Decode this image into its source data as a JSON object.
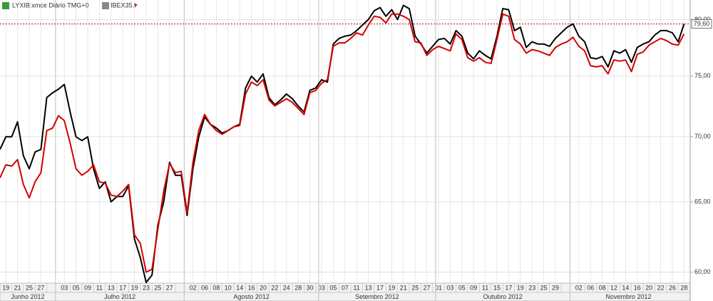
{
  "chart_data": {
    "type": "line",
    "log_scale": true,
    "grid": true,
    "categories": [
      null,
      "19",
      null,
      "21",
      null,
      "25",
      null,
      "27",
      null,
      null,
      null,
      "03",
      null,
      "05",
      null,
      "09",
      null,
      "11",
      null,
      "13",
      null,
      "17",
      null,
      "19",
      null,
      "23",
      null,
      "25",
      null,
      "27",
      null,
      null,
      null,
      "02",
      null,
      "06",
      null,
      "08",
      null,
      "10",
      null,
      "14",
      null,
      "16",
      null,
      "20",
      null,
      "22",
      null,
      "24",
      null,
      "28",
      null,
      "30",
      null,
      "03",
      null,
      "05",
      null,
      "07",
      null,
      "11",
      null,
      "13",
      null,
      "17",
      null,
      "19",
      null,
      "21",
      null,
      "25",
      null,
      "27",
      null,
      "01",
      null,
      "03",
      null,
      "05",
      null,
      "09",
      null,
      "11",
      null,
      "15",
      null,
      "17",
      null,
      "19",
      null,
      "23",
      null,
      "25",
      null,
      "29",
      null,
      null,
      null,
      "02",
      null,
      "06",
      null,
      "08",
      null,
      "12",
      null,
      "14",
      null,
      "16",
      null,
      "20",
      null,
      "22",
      null,
      "26",
      null,
      "28"
    ],
    "months": [
      "Junho 2012",
      "Julho 2012",
      "Agosto 2012",
      "Setembro 2012",
      "Outubro 2012",
      "Novembro 2012"
    ],
    "series": [
      {
        "name": "LYXIB:xmce Diário TMG+0",
        "color": "#000000",
        "values": [
          69.0,
          70.0,
          70.0,
          71.2,
          68.5,
          67.5,
          68.8,
          69.0,
          73.2,
          73.6,
          73.9,
          74.3,
          72.0,
          70.0,
          69.7,
          70.0,
          67.5,
          66.0,
          66.5,
          65.0,
          65.4,
          65.4,
          66.2,
          62.3,
          61.0,
          59.3,
          59.8,
          63.3,
          65.0,
          68.0,
          67.0,
          67.0,
          64.0,
          67.5,
          70.0,
          71.6,
          71.0,
          70.7,
          70.3,
          70.5,
          70.8,
          71.0,
          74.0,
          75.0,
          74.5,
          75.2,
          73.2,
          72.6,
          73.0,
          73.5,
          73.1,
          72.5,
          72.0,
          73.8,
          74.0,
          74.7,
          74.5,
          77.8,
          78.3,
          78.5,
          78.6,
          79.0,
          79.5,
          80.0,
          80.8,
          81.1,
          80.3,
          80.9,
          80.0,
          81.3,
          81.0,
          78.5,
          77.8,
          77.0,
          77.6,
          78.2,
          78.3,
          77.8,
          79.0,
          78.5,
          77.0,
          76.5,
          77.2,
          76.8,
          76.5,
          78.5,
          81.0,
          80.9,
          79.0,
          79.3,
          77.5,
          78.0,
          77.8,
          77.8,
          77.6,
          78.3,
          78.8,
          79.3,
          79.6,
          78.5,
          78.0,
          76.6,
          76.5,
          76.7,
          75.8,
          77.2,
          77.0,
          77.3,
          76.2,
          77.5,
          77.8,
          78.0,
          78.6,
          79.0,
          79.0,
          78.8,
          78.0,
          79.6
        ]
      },
      {
        "name": "IBEX35.I",
        "color": "#d40000",
        "values": [
          66.8,
          67.8,
          67.7,
          68.2,
          66.3,
          65.3,
          66.5,
          67.2,
          70.5,
          70.7,
          71.7,
          71.3,
          69.5,
          67.5,
          67.0,
          67.3,
          67.8,
          66.5,
          66.4,
          65.5,
          65.4,
          65.8,
          66.3,
          62.6,
          62.0,
          60.0,
          60.2,
          63.0,
          65.8,
          67.9,
          67.2,
          67.3,
          64.2,
          68.0,
          70.5,
          71.8,
          71.0,
          70.5,
          70.2,
          70.5,
          70.8,
          70.9,
          73.5,
          74.5,
          74.2,
          74.7,
          73.0,
          72.5,
          72.8,
          73.1,
          72.8,
          72.3,
          71.8,
          73.6,
          73.8,
          74.4,
          74.7,
          77.6,
          77.9,
          77.9,
          78.3,
          78.8,
          78.6,
          79.5,
          80.3,
          80.2,
          79.7,
          80.5,
          80.5,
          80.3,
          80.0,
          78.0,
          77.9,
          76.8,
          77.3,
          77.6,
          77.4,
          77.2,
          78.7,
          78.2,
          76.6,
          76.3,
          76.6,
          76.2,
          76.1,
          78.2,
          80.5,
          80.3,
          78.2,
          77.8,
          77.0,
          77.3,
          77.2,
          77.0,
          76.8,
          77.5,
          77.8,
          78.0,
          78.4,
          77.6,
          77.2,
          75.9,
          75.8,
          75.9,
          75.2,
          76.4,
          76.3,
          76.4,
          75.4,
          76.9,
          77.1,
          77.7,
          78.0,
          78.3,
          78.1,
          77.8,
          77.7,
          78.7
        ]
      }
    ],
    "ylim": [
      59.3,
      81.8
    ],
    "yticks": [
      {
        "value": 60,
        "label": "60,00"
      },
      {
        "value": 65,
        "label": "65,00"
      },
      {
        "value": 70,
        "label": "70,00"
      },
      {
        "value": 75,
        "label": "75,00"
      },
      {
        "value": 80,
        "label": "80,00"
      }
    ],
    "price_line": {
      "value": 79.6,
      "label": "79,60",
      "color": "#c00000"
    }
  }
}
